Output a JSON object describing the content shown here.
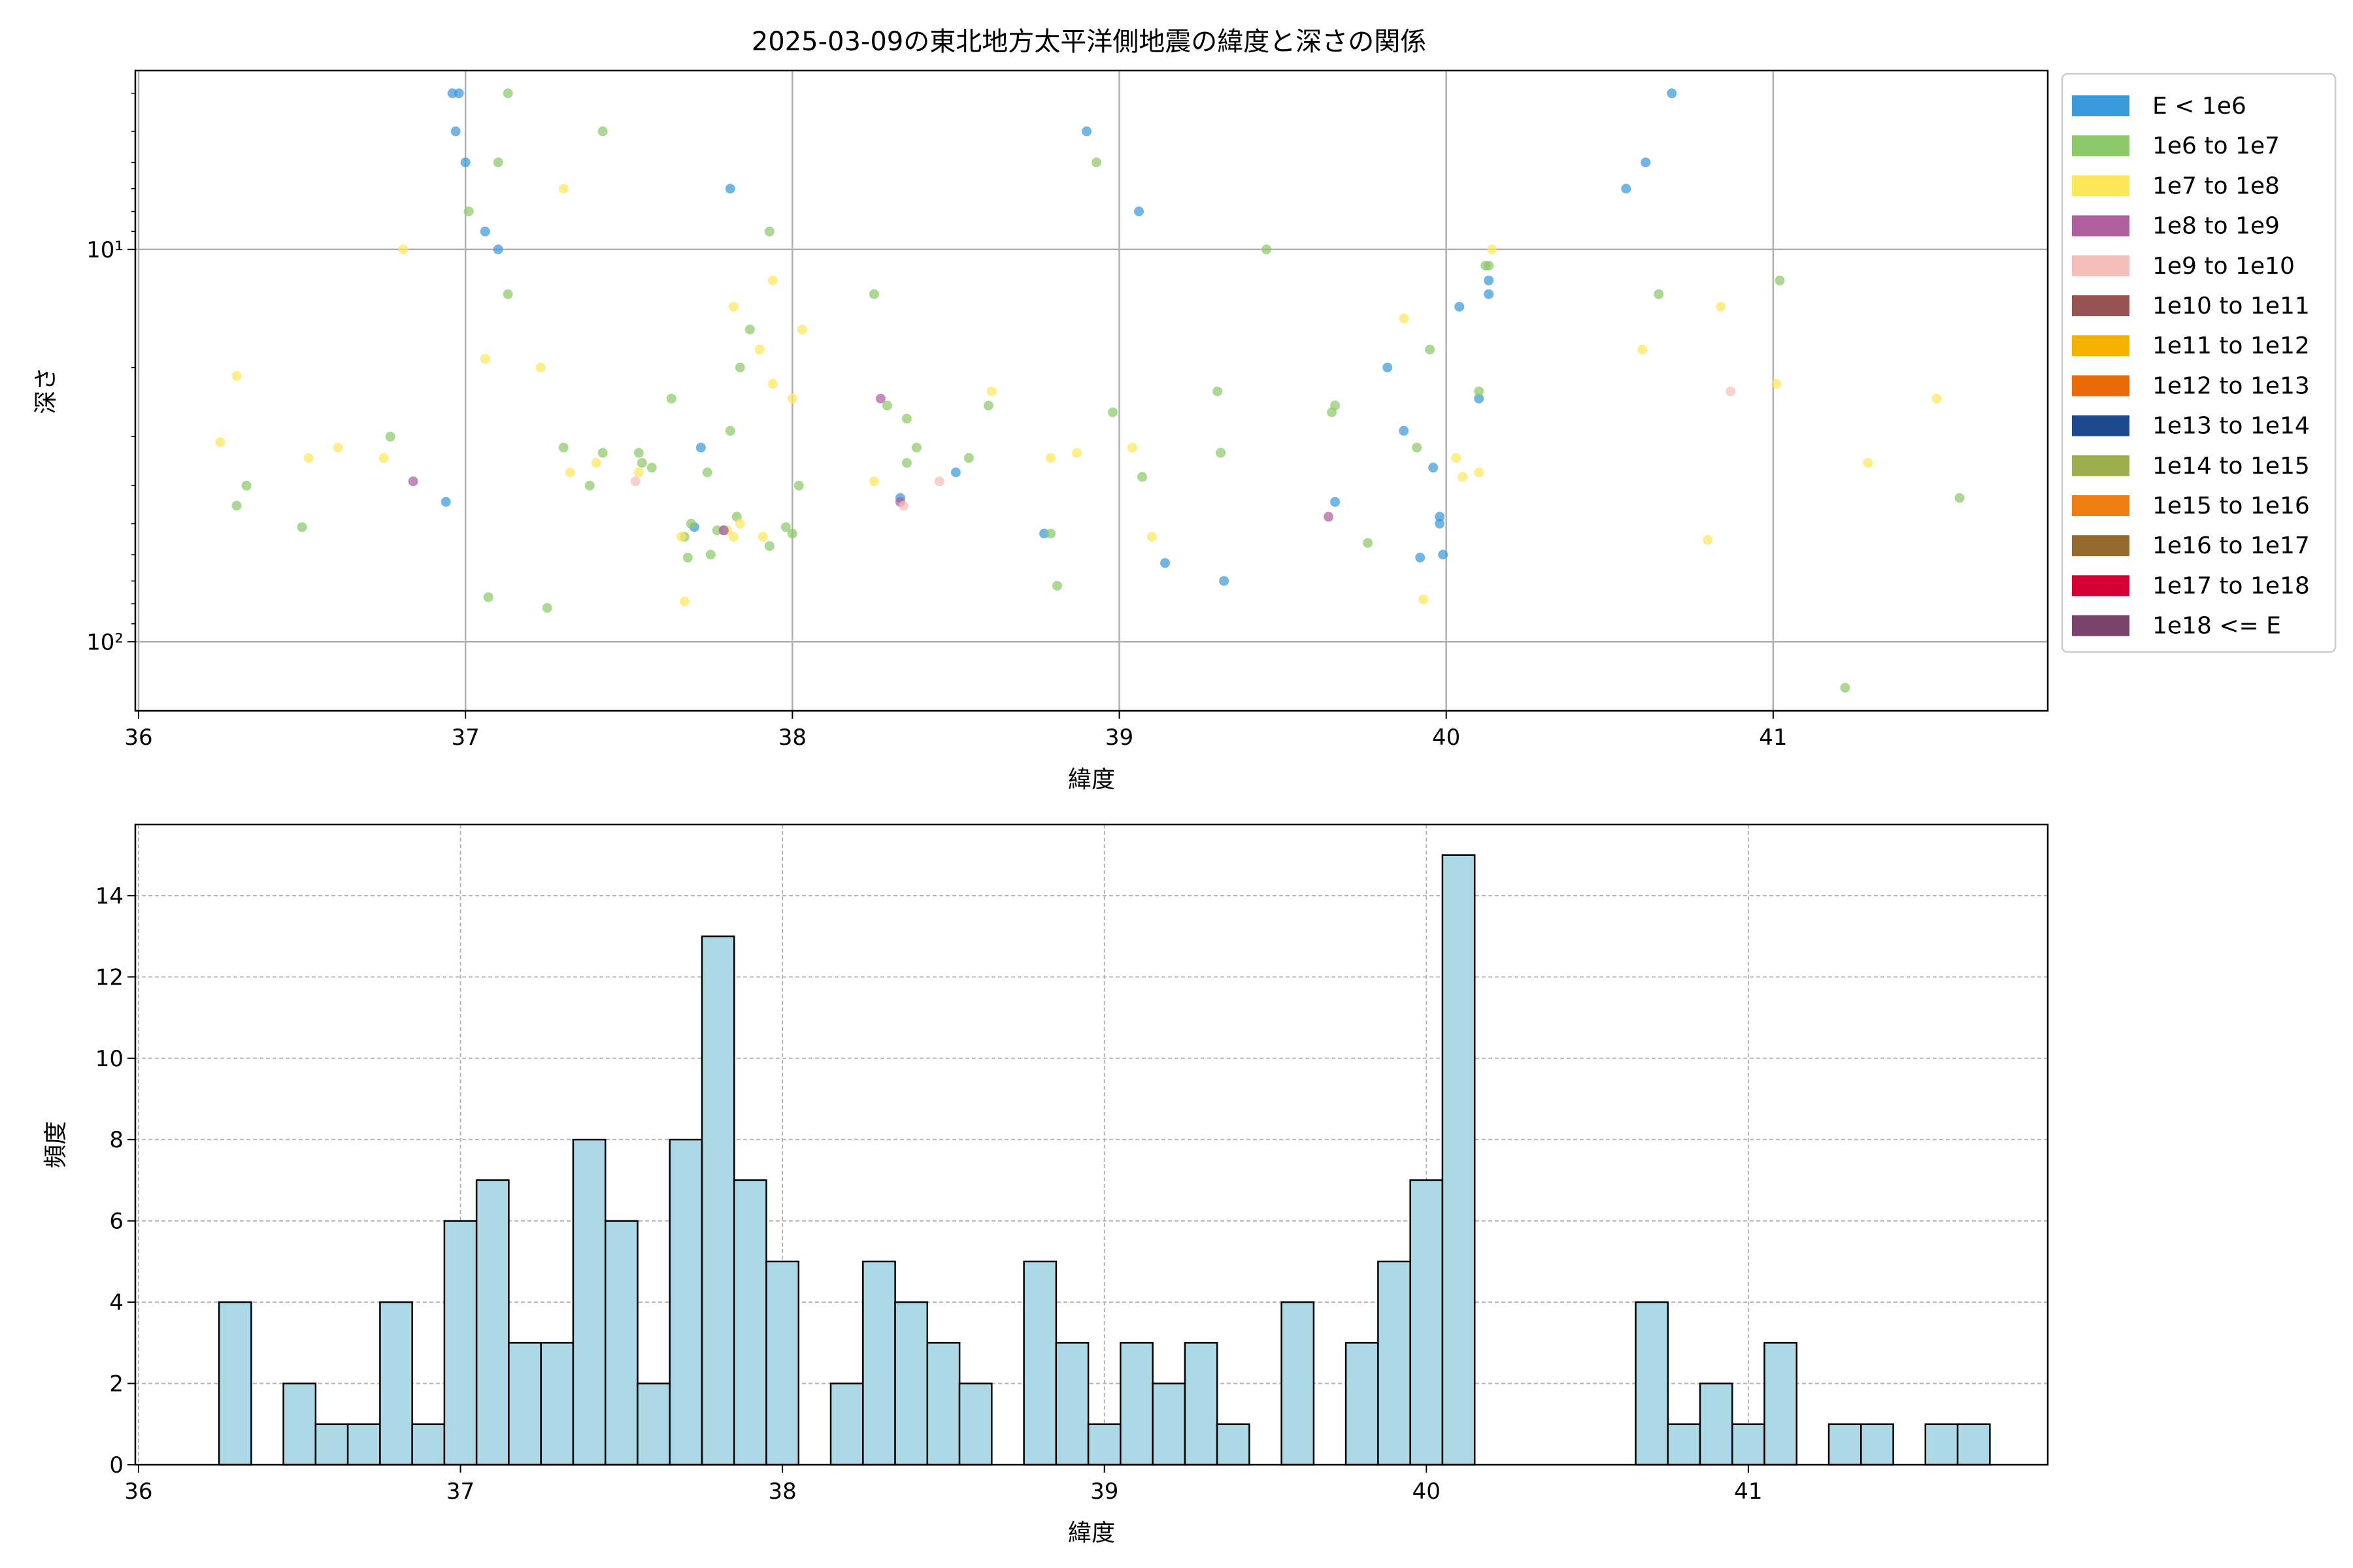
{
  "figure": {
    "title": "2025-03-09の東北地方太平洋側地震の緯度と深さの関係"
  },
  "colors": {
    "background": "#ffffff",
    "grid": "#b0b0b0",
    "hist_fill": "#add8e6",
    "hist_edge": "#000000"
  },
  "chart_data": [
    {
      "type": "scatter",
      "xlabel": "緯度",
      "ylabel": "深さ",
      "xlim": [
        35.99,
        41.84
      ],
      "ylim_log_inverted": [
        3.5,
        150
      ],
      "y_scale": "log",
      "y_inverted": true,
      "grid": true,
      "legend_position": "outside-right",
      "x_ticks": [
        36,
        37,
        38,
        39,
        40,
        41
      ],
      "y_ticks": [
        {
          "value": 10,
          "label": "10¹"
        },
        {
          "value": 100,
          "label": "10²"
        }
      ],
      "legend": [
        {
          "label": "E < 1e6",
          "color": "#3a9ad9"
        },
        {
          "label": "1e6 to 1e7",
          "color": "#8dc96b"
        },
        {
          "label": "1e7 to 1e8",
          "color": "#fde65a"
        },
        {
          "label": "1e8 to 1e9",
          "color": "#b05f9e"
        },
        {
          "label": "1e9 to 1e10",
          "color": "#f4bfb9"
        },
        {
          "label": "1e10 to 1e11",
          "color": "#975252"
        },
        {
          "label": "1e11 to 1e12",
          "color": "#f5b201"
        },
        {
          "label": "1e12 to 1e13",
          "color": "#eb6a08"
        },
        {
          "label": "1e13 to 1e14",
          "color": "#1d4a8c"
        },
        {
          "label": "1e14 to 1e15",
          "color": "#9caf4c"
        },
        {
          "label": "1e15 to 1e16",
          "color": "#ee7d12"
        },
        {
          "label": "1e16 to 1e17",
          "color": "#946b2c"
        },
        {
          "label": "1e17 to 1e18",
          "color": "#d70034"
        },
        {
          "label": "1e18 <= E",
          "color": "#7a436c"
        }
      ],
      "series": [
        {
          "name": "E < 1e6",
          "color": "#3a9ad9",
          "points": [
            [
              36.96,
              4
            ],
            [
              36.98,
              4
            ],
            [
              36.97,
              5
            ],
            [
              37.0,
              6
            ],
            [
              37.06,
              9
            ],
            [
              37.1,
              10
            ],
            [
              36.94,
              44
            ],
            [
              37.72,
              32
            ],
            [
              37.7,
              51
            ],
            [
              37.81,
              7
            ],
            [
              37.79,
              52
            ],
            [
              38.33,
              43
            ],
            [
              38.5,
              37
            ],
            [
              38.77,
              53
            ],
            [
              38.9,
              5
            ],
            [
              39.06,
              8
            ],
            [
              39.14,
              63
            ],
            [
              39.32,
              70
            ],
            [
              39.66,
              44
            ],
            [
              39.82,
              20
            ],
            [
              39.87,
              29
            ],
            [
              39.92,
              61
            ],
            [
              39.96,
              36
            ],
            [
              39.98,
              48
            ],
            [
              39.98,
              50
            ],
            [
              39.99,
              60
            ],
            [
              40.04,
              14
            ],
            [
              40.1,
              24
            ],
            [
              40.13,
              12
            ],
            [
              40.13,
              13
            ],
            [
              40.55,
              7
            ],
            [
              40.61,
              6
            ],
            [
              40.69,
              4
            ]
          ]
        },
        {
          "name": "1e6 to 1e7",
          "color": "#8dc96b",
          "points": [
            [
              36.3,
              45
            ],
            [
              36.33,
              40
            ],
            [
              36.5,
              51
            ],
            [
              36.77,
              30
            ],
            [
              37.01,
              8
            ],
            [
              37.07,
              77
            ],
            [
              37.1,
              6
            ],
            [
              37.13,
              4
            ],
            [
              37.13,
              13
            ],
            [
              37.25,
              82
            ],
            [
              37.3,
              32
            ],
            [
              37.38,
              40
            ],
            [
              37.42,
              33
            ],
            [
              37.42,
              5
            ],
            [
              37.53,
              33
            ],
            [
              37.54,
              35
            ],
            [
              37.57,
              36
            ],
            [
              37.63,
              24
            ],
            [
              37.67,
              54
            ],
            [
              37.68,
              61
            ],
            [
              37.69,
              50
            ],
            [
              37.74,
              37
            ],
            [
              37.75,
              60
            ],
            [
              37.77,
              52
            ],
            [
              37.81,
              29
            ],
            [
              37.83,
              48
            ],
            [
              37.84,
              20
            ],
            [
              37.87,
              16
            ],
            [
              37.93,
              9
            ],
            [
              37.93,
              57
            ],
            [
              37.98,
              51
            ],
            [
              38.0,
              53
            ],
            [
              38.02,
              40
            ],
            [
              38.25,
              13
            ],
            [
              38.29,
              25
            ],
            [
              38.35,
              27
            ],
            [
              38.35,
              35
            ],
            [
              38.38,
              32
            ],
            [
              38.54,
              34
            ],
            [
              38.6,
              25
            ],
            [
              38.79,
              53
            ],
            [
              38.81,
              72
            ],
            [
              38.93,
              6
            ],
            [
              38.98,
              26
            ],
            [
              39.07,
              38
            ],
            [
              39.3,
              23
            ],
            [
              39.31,
              33
            ],
            [
              39.45,
              10
            ],
            [
              39.65,
              26
            ],
            [
              39.66,
              25
            ],
            [
              39.76,
              56
            ],
            [
              39.91,
              32
            ],
            [
              39.95,
              18
            ],
            [
              40.1,
              23
            ],
            [
              40.12,
              11
            ],
            [
              40.13,
              11
            ],
            [
              40.65,
              13
            ],
            [
              41.02,
              12
            ],
            [
              41.22,
              131
            ],
            [
              41.57,
              43
            ]
          ]
        },
        {
          "name": "1e7 to 1e8",
          "color": "#fde65a",
          "points": [
            [
              36.25,
              31
            ],
            [
              36.3,
              21
            ],
            [
              36.52,
              34
            ],
            [
              36.61,
              32
            ],
            [
              36.75,
              34
            ],
            [
              36.81,
              10
            ],
            [
              37.06,
              19
            ],
            [
              37.23,
              20
            ],
            [
              37.3,
              7
            ],
            [
              37.32,
              37
            ],
            [
              37.4,
              35
            ],
            [
              37.53,
              37
            ],
            [
              37.66,
              54
            ],
            [
              37.67,
              79
            ],
            [
              37.8,
              52
            ],
            [
              37.82,
              54
            ],
            [
              37.82,
              14
            ],
            [
              37.84,
              50
            ],
            [
              37.9,
              18
            ],
            [
              37.91,
              54
            ],
            [
              37.94,
              22
            ],
            [
              37.94,
              12
            ],
            [
              38.0,
              24
            ],
            [
              38.03,
              16
            ],
            [
              38.25,
              39
            ],
            [
              38.61,
              23
            ],
            [
              38.79,
              34
            ],
            [
              38.87,
              33
            ],
            [
              39.04,
              32
            ],
            [
              39.1,
              54
            ],
            [
              39.87,
              15
            ],
            [
              39.93,
              78
            ],
            [
              40.03,
              34
            ],
            [
              40.05,
              38
            ],
            [
              40.1,
              37
            ],
            [
              40.14,
              10
            ],
            [
              40.6,
              18
            ],
            [
              40.8,
              55
            ],
            [
              40.84,
              14
            ],
            [
              41.01,
              22
            ],
            [
              41.29,
              35
            ],
            [
              41.5,
              24
            ]
          ]
        },
        {
          "name": "1e8 to 1e9",
          "color": "#b05f9e",
          "points": [
            [
              36.84,
              39
            ],
            [
              37.79,
              52
            ],
            [
              38.27,
              24
            ],
            [
              38.33,
              44
            ],
            [
              39.64,
              48
            ]
          ]
        },
        {
          "name": "1e9 to 1e10",
          "color": "#f4bfb9",
          "points": [
            [
              37.52,
              39
            ],
            [
              38.34,
              45
            ],
            [
              38.45,
              39
            ],
            [
              40.87,
              23
            ]
          ]
        }
      ]
    },
    {
      "type": "bar",
      "subtype": "histogram",
      "xlabel": "緯度",
      "ylabel": "頻度",
      "xlim": [
        35.99,
        41.93
      ],
      "ylim": [
        0,
        15.75
      ],
      "grid": true,
      "x_ticks": [
        36,
        37,
        38,
        39,
        40,
        41
      ],
      "y_ticks": [
        0,
        2,
        4,
        6,
        8,
        10,
        12,
        14
      ],
      "bin_start": 36.25,
      "bin_width": 0.1,
      "values": [
        4,
        0,
        2,
        1,
        1,
        4,
        1,
        6,
        7,
        3,
        3,
        8,
        6,
        2,
        8,
        13,
        7,
        5,
        0,
        2,
        5,
        4,
        3,
        2,
        0,
        5,
        3,
        1,
        3,
        2,
        3,
        1,
        0,
        4,
        0,
        3,
        5,
        7,
        15,
        0,
        0,
        0,
        0,
        0,
        4,
        1,
        2,
        1,
        3,
        0,
        1,
        1,
        0,
        1,
        1
      ]
    }
  ]
}
